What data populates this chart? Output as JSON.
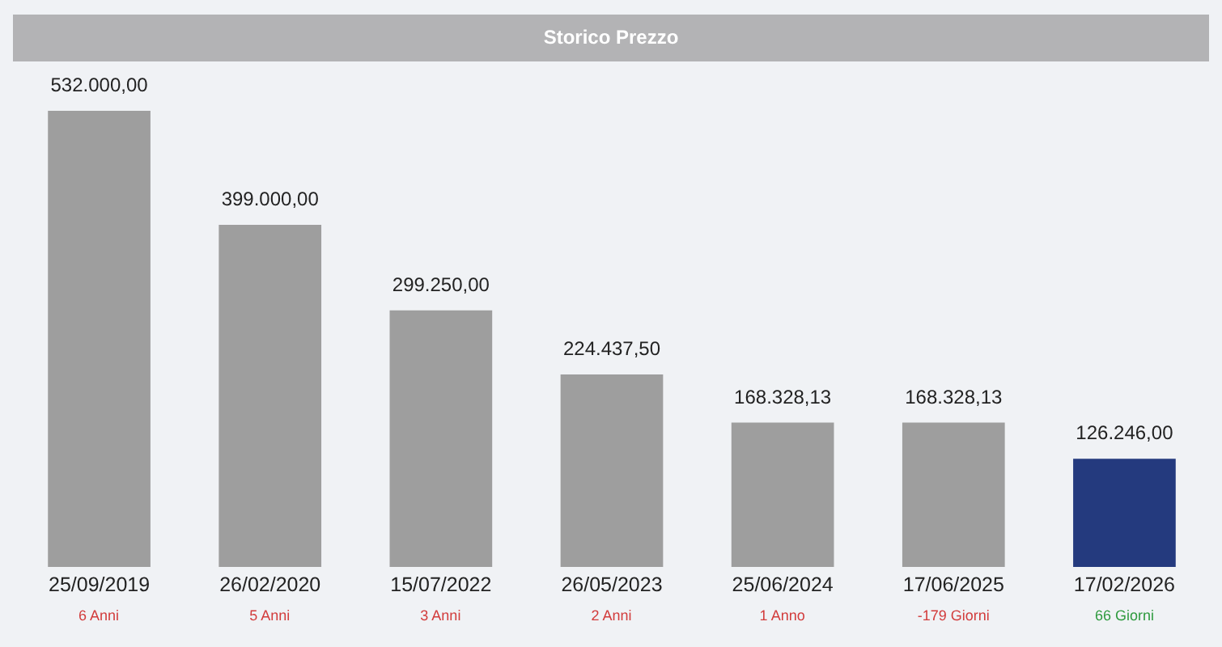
{
  "chart_data": {
    "type": "bar",
    "title": "Storico Prezzo",
    "categories": [
      "25/09/2019",
      "26/02/2020",
      "15/07/2022",
      "26/05/2023",
      "25/06/2024",
      "17/06/2025",
      "17/02/2026"
    ],
    "values": [
      532000,
      399000,
      299250,
      224437.5,
      168328.13,
      168328.13,
      126246
    ],
    "value_labels": [
      "532.000,00",
      "399.000,00",
      "299.250,00",
      "224.437,50",
      "168.328,13",
      "168.328,13",
      "126.246,00"
    ],
    "colors": [
      "#9e9e9e",
      "#9e9e9e",
      "#9e9e9e",
      "#9e9e9e",
      "#9e9e9e",
      "#9e9e9e",
      "#243a7e"
    ],
    "annotations": [
      "6 Anni",
      "5 Anni",
      "3 Anni",
      "2 Anni",
      "1 Anno",
      "-179 Giorni",
      "66 Giorni"
    ],
    "grid": false
  }
}
